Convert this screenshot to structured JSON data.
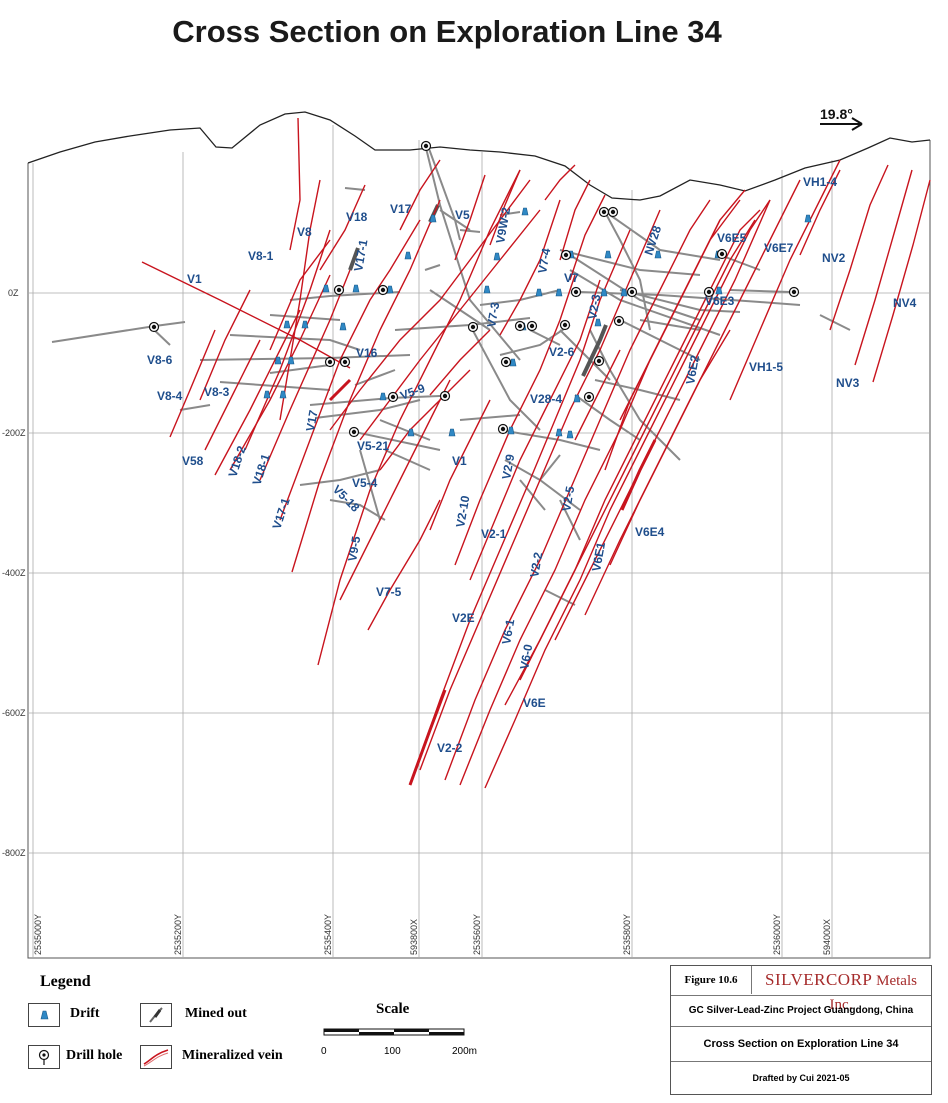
{
  "title": "Cross Section on Exploration Line 34",
  "azimuth": "19.8°",
  "elevations": [
    "0Z",
    "-200Z",
    "-400Z",
    "-600Z",
    "-800Z"
  ],
  "coords": [
    "2535000Y",
    "2535200Y",
    "2535400Y",
    "593800X",
    "2535600Y",
    "2535800Y",
    "2536000Y",
    "594000X"
  ],
  "veins": [
    "V1",
    "V8-6",
    "V8-4",
    "V58",
    "V8-1",
    "V8",
    "V18",
    "V17",
    "V5",
    "V9W-2",
    "V17-1",
    "V7-4",
    "V7",
    "V2-3",
    "NV28",
    "V6E5",
    "V6E7",
    "NV2",
    "NV4",
    "VH1-4",
    "V6E3",
    "V7-3",
    "V2-6",
    "V16",
    "V8-3",
    "V18-2",
    "V18-1",
    "V17-1",
    "V17",
    "V5-9",
    "V5-21",
    "V5-4",
    "V5-18",
    "V1",
    "V2-9",
    "V28-4",
    "V2-10",
    "V2-1",
    "V2-5",
    "V6E4",
    "V6E1",
    "V9-5",
    "V7-5",
    "V2-2",
    "V2E",
    "V6-1",
    "V6-0",
    "V6E",
    "V2-2",
    "V6E2",
    "VH1-5",
    "NV3"
  ],
  "legend": {
    "title": "Legend",
    "drift": "Drift",
    "mined_out": "Mined out",
    "drill_hole": "Drill hole",
    "mineralized_vein": "Mineralized vein"
  },
  "scale": {
    "title": "Scale",
    "labels": [
      "0",
      "100",
      "200m"
    ]
  },
  "title_block": {
    "figure": "Figure 10.6",
    "company_big": "SILVERCORP",
    "company_rest": "Metals Inc.",
    "project": "GC Silver-Lead-Zinc Project Guangdong, China",
    "section": "Cross Section on Exploration Line 34",
    "drafted": "Drafted by Cui 2021-05"
  },
  "colors": {
    "vein": "#c8141e",
    "drift": "#2f88c4",
    "mined": "#888888",
    "label": "#1f4e8c"
  }
}
